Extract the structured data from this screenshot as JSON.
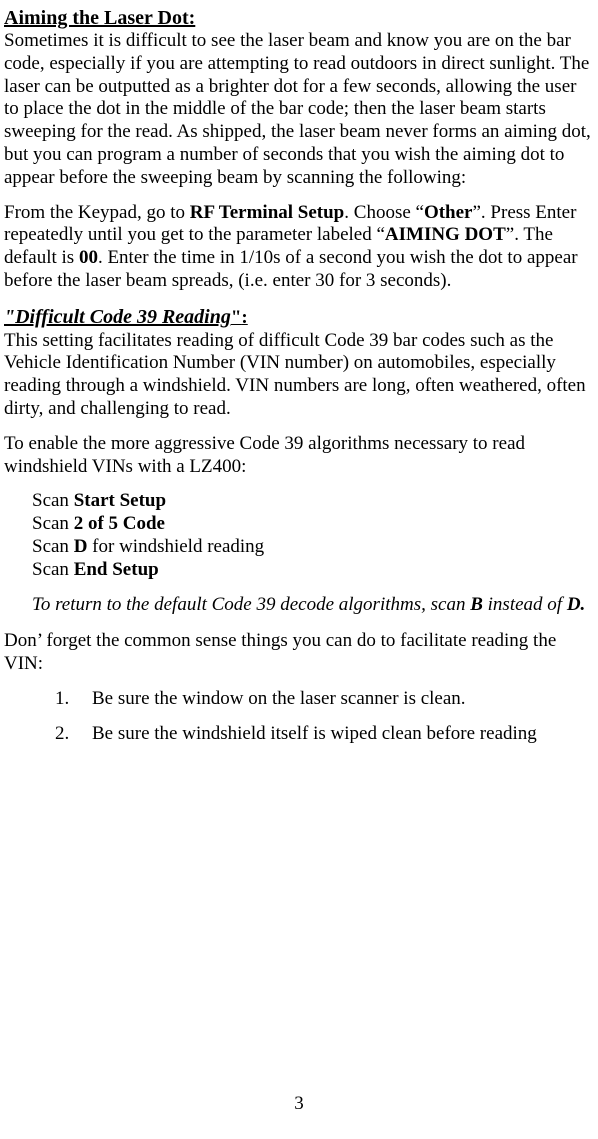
{
  "sec1": {
    "heading": "Aiming the Laser Dot:",
    "para1_a": "Sometimes it is difficult to see the laser beam and know you are on the bar code, especially if you are attempting to read outdoors in direct sunlight.  The laser can be outputted as a brighter dot for a few seconds, allowing the user to place the dot in the middle of the bar code; then the laser beam starts sweeping for the read. As shipped, the laser beam never forms an aiming dot, but you can program a number of seconds that you wish the aiming dot to appear before the sweeping beam by scanning the following:",
    "para2_a": "From the Keypad, go to ",
    "para2_b": "RF Terminal Setup",
    "para2_c": ". Choose “",
    "para2_d": "Other",
    "para2_e": "”. Press Enter repeatedly until you get to the parameter labeled “",
    "para2_f": "AIMING DOT",
    "para2_g": "”. The default is ",
    "para2_h": "00",
    "para2_i": ". Enter the time in 1/10s of a second you wish the dot to appear before the laser beam spreads, (i.e. enter 30 for 3 seconds)."
  },
  "sec2": {
    "heading_a": "\"Difficult Code 39 Reading",
    "heading_b": "\"",
    "heading_c": ":",
    "para1": "This setting facilitates reading of difficult Code 39 bar codes such as the Vehicle Identification Number (VIN number) on automobiles, especially reading through a windshield.  VIN numbers are long, often weathered, often dirty, and challenging to read.",
    "para2": "To enable the more aggressive Code 39 algorithms necessary to read windshield VINs with a LZ400:",
    "scan": {
      "l1a": "Scan ",
      "l1b": "Start Setup",
      "l2a": "Scan ",
      "l2b": "2 of 5 Code",
      "l3a": "Scan ",
      "l3b": "D",
      "l3c": " for windshield reading",
      "l4a": "Scan ",
      "l4b": "End Setup"
    },
    "note_a": "To return to the default Code 39 decode algorithms, scan ",
    "note_b": "B",
    "note_c": " instead of ",
    "note_d": "D.",
    "para3": "Don’ forget the common sense things you can do to facilitate reading the VIN:",
    "list": {
      "i1": "Be sure the window on the laser scanner is clean.",
      "i2": "Be sure the windshield itself is wiped clean before reading"
    }
  },
  "page_number": "3"
}
